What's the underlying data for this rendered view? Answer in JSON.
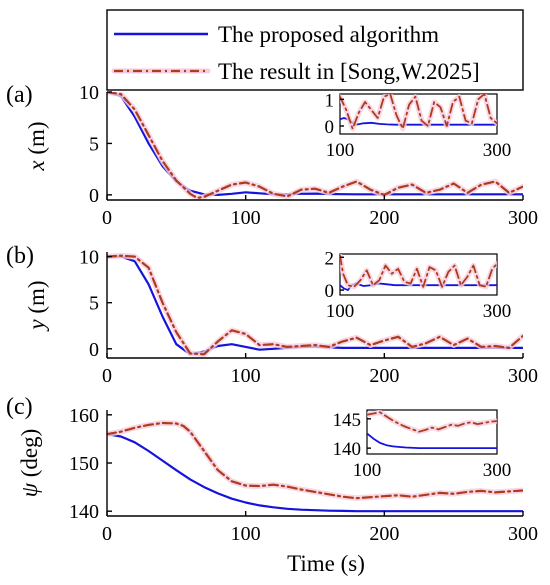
{
  "legend": {
    "items": [
      {
        "label": "The proposed algorithm",
        "color": "#1414dc",
        "style": "solid"
      },
      {
        "label": "The result in [Song,W.2025]",
        "color": "#b03a1a",
        "style": "dash-dot"
      }
    ]
  },
  "xlabel": "Time  (s)",
  "chart_data": [
    {
      "type": "line",
      "panel": "(a)",
      "ylabel": "x (m)",
      "xlim": [
        0,
        300
      ],
      "ylim": [
        -0.5,
        10
      ],
      "xticks": [
        0,
        100,
        200,
        300
      ],
      "yticks": [
        0,
        5,
        10
      ],
      "series": [
        {
          "name": "The proposed algorithm",
          "color": "#1414dc",
          "x": [
            0,
            10,
            20,
            30,
            40,
            50,
            60,
            70,
            80,
            90,
            100,
            110,
            120,
            130,
            140,
            150,
            160,
            170,
            180,
            190,
            200,
            210,
            220,
            230,
            240,
            250,
            260,
            270,
            280,
            290,
            300
          ],
          "y": [
            10,
            9.6,
            7.6,
            5,
            2.8,
            1.3,
            0.4,
            0.05,
            0,
            0.1,
            0.25,
            0.15,
            0.05,
            0.05,
            0.1,
            0.12,
            0.08,
            0.06,
            0.05,
            0.05,
            0.05,
            0.05,
            0.05,
            0.05,
            0.05,
            0.05,
            0.05,
            0.05,
            0.05,
            0.05,
            0.05
          ]
        },
        {
          "name": "The result in [Song,W.2025]",
          "color": "#b03a1a",
          "x": [
            0,
            10,
            20,
            30,
            40,
            50,
            60,
            65,
            70,
            80,
            90,
            100,
            110,
            120,
            130,
            140,
            150,
            160,
            170,
            180,
            190,
            200,
            210,
            220,
            230,
            240,
            250,
            260,
            270,
            280,
            290,
            300
          ],
          "y": [
            10,
            9.8,
            8.3,
            5.8,
            3.3,
            1.4,
            0.1,
            -0.3,
            -0.2,
            0.4,
            1,
            1.2,
            0.8,
            0.1,
            -0.15,
            0.5,
            0.6,
            0.2,
            0.8,
            1.3,
            0.5,
            0,
            0.7,
            1,
            0.2,
            0.5,
            1.1,
            0.2,
            1,
            1.3,
            0.2,
            0.8
          ]
        }
      ],
      "inset": {
        "xlim": [
          100,
          300
        ],
        "ylim": [
          -0.3,
          1.2
        ],
        "xticks": [
          100,
          300
        ],
        "yticks": [
          0,
          1
        ],
        "series": [
          {
            "name": "The proposed algorithm",
            "color": "#1414dc",
            "x": [
              100,
              105,
              110,
              115,
              120,
              130,
              140,
              150,
              160,
              170,
              180,
              200,
              220,
              240,
              260,
              280,
              300
            ],
            "y": [
              0.25,
              0.3,
              0.25,
              0.15,
              0.05,
              0.1,
              0.12,
              0.08,
              0.06,
              0.05,
              0.05,
              0.05,
              0.05,
              0.05,
              0.05,
              0.05,
              0.05
            ]
          },
          {
            "name": "The result in [Song,W.2025]",
            "color": "#b03a1a",
            "x": [
              100,
              108,
              116,
              124,
              132,
              140,
              148,
              156,
              164,
              172,
              180,
              188,
              196,
              204,
              212,
              220,
              228,
              236,
              244,
              252,
              260,
              268,
              276,
              284,
              292,
              300
            ],
            "y": [
              1.1,
              0.6,
              -0.1,
              0.5,
              0.9,
              0.6,
              0.3,
              1.1,
              1.2,
              0.4,
              -0.1,
              0.8,
              1.1,
              0.2,
              0.0,
              0.9,
              0.7,
              0.0,
              0.9,
              1.1,
              0.2,
              0.1,
              1.0,
              1.2,
              0.3,
              0.1
            ]
          }
        ]
      }
    },
    {
      "type": "line",
      "panel": "(b)",
      "ylabel": "y (m)",
      "xlim": [
        0,
        300
      ],
      "ylim": [
        -1,
        10.5
      ],
      "xticks": [
        0,
        100,
        200,
        300
      ],
      "yticks": [
        0,
        5,
        10
      ],
      "series": [
        {
          "name": "The proposed algorithm",
          "color": "#1414dc",
          "x": [
            0,
            10,
            20,
            30,
            40,
            50,
            60,
            70,
            80,
            90,
            100,
            110,
            120,
            130,
            140,
            150,
            160,
            170,
            180,
            200,
            220,
            240,
            260,
            280,
            300
          ],
          "y": [
            10,
            10,
            9.5,
            7,
            3.5,
            0.5,
            -0.6,
            -0.3,
            0.3,
            0.5,
            0.2,
            -0.1,
            0,
            0.1,
            0.2,
            0.2,
            0.15,
            0.1,
            0.1,
            0.1,
            0.1,
            0.1,
            0.1,
            0.1,
            0.1
          ]
        },
        {
          "name": "The result in [Song,W.2025]",
          "color": "#b03a1a",
          "x": [
            0,
            10,
            20,
            30,
            40,
            50,
            60,
            70,
            80,
            90,
            100,
            110,
            120,
            130,
            140,
            150,
            160,
            170,
            180,
            190,
            200,
            210,
            220,
            230,
            240,
            250,
            260,
            270,
            280,
            290,
            300
          ],
          "y": [
            10,
            10.1,
            10,
            8.8,
            5,
            1.8,
            -0.5,
            -0.6,
            0.8,
            2,
            1.6,
            0.4,
            0.5,
            0.2,
            0.3,
            0.4,
            0.2,
            0.8,
            1.2,
            0.4,
            0.9,
            1.3,
            0.2,
            0.6,
            1.3,
            0.4,
            1.1,
            0.2,
            0.3,
            0.1,
            1.4
          ]
        }
      ],
      "inset": {
        "xlim": [
          100,
          300
        ],
        "ylim": [
          -0.3,
          2.2
        ],
        "xticks": [
          100,
          300
        ],
        "yticks": [
          0,
          2
        ],
        "series": [
          {
            "name": "The proposed algorithm",
            "color": "#1414dc",
            "x": [
              100,
              105,
              110,
              115,
              120,
              130,
              140,
              150,
              160,
              170,
              180,
              200,
              220,
              240,
              260,
              280,
              300
            ],
            "y": [
              0.3,
              0.1,
              0,
              0.3,
              0.4,
              0.25,
              0.3,
              0.4,
              0.35,
              0.3,
              0.3,
              0.3,
              0.3,
              0.3,
              0.3,
              0.3,
              0.3
            ]
          },
          {
            "name": "The result in [Song,W.2025]",
            "color": "#b03a1a",
            "x": [
              100,
              104,
              110,
              118,
              126,
              134,
              142,
              150,
              158,
              166,
              174,
              182,
              190,
              198,
              206,
              214,
              222,
              230,
              238,
              246,
              254,
              262,
              270,
              278,
              286,
              294,
              300
            ],
            "y": [
              2.1,
              1.0,
              0.3,
              0.2,
              0.6,
              1.2,
              0.3,
              0.6,
              1.5,
              1.0,
              1.3,
              0.5,
              0.4,
              1.3,
              0.2,
              1.4,
              1.2,
              0.2,
              1.1,
              1.5,
              0.3,
              0.8,
              1.5,
              0.3,
              0.2,
              1.3,
              1.6
            ]
          }
        ]
      }
    },
    {
      "type": "line",
      "panel": "(c)",
      "ylabel": "ψ (deg)",
      "xlim": [
        0,
        300
      ],
      "ylim": [
        139,
        161
      ],
      "xticks": [
        0,
        100,
        200,
        300
      ],
      "yticks": [
        140,
        150,
        160
      ],
      "series": [
        {
          "name": "The proposed algorithm",
          "color": "#1414dc",
          "x": [
            0,
            10,
            20,
            30,
            40,
            50,
            60,
            70,
            80,
            90,
            100,
            110,
            120,
            130,
            140,
            150,
            160,
            170,
            180,
            200,
            220,
            240,
            260,
            280,
            300
          ],
          "y": [
            156,
            155.5,
            154.3,
            152.5,
            150.5,
            148.5,
            146.6,
            145,
            143.7,
            142.6,
            141.8,
            141.2,
            140.8,
            140.5,
            140.3,
            140.2,
            140.1,
            140.05,
            140,
            140,
            140,
            140,
            140,
            140,
            140
          ]
        },
        {
          "name": "The result in [Song,W.2025]",
          "color": "#b03a1a",
          "x": [
            0,
            10,
            20,
            30,
            40,
            50,
            55,
            60,
            70,
            80,
            90,
            100,
            110,
            120,
            130,
            140,
            150,
            160,
            170,
            180,
            190,
            200,
            210,
            220,
            230,
            240,
            250,
            260,
            270,
            280,
            290,
            300
          ],
          "y": [
            156,
            156.5,
            157.3,
            157.9,
            158.3,
            158.2,
            157.7,
            156.5,
            152.5,
            148.5,
            146.2,
            145.3,
            145.2,
            145.5,
            145.1,
            144.5,
            144,
            143.5,
            143,
            142.7,
            142.9,
            143.1,
            143.3,
            143,
            143.4,
            143.8,
            143.6,
            144,
            144.2,
            143.9,
            144.1,
            144.3
          ]
        }
      ],
      "inset": {
        "xlim": [
          100,
          300
        ],
        "ylim": [
          139,
          146.5
        ],
        "xticks": [
          100,
          300
        ],
        "yticks": [
          140,
          145
        ],
        "series": [
          {
            "name": "The proposed algorithm",
            "color": "#1414dc",
            "x": [
              100,
              110,
              120,
              130,
              140,
              150,
              160,
              180,
              200,
              220,
              240,
              260,
              280,
              300
            ],
            "y": [
              142.5,
              141.6,
              140.9,
              140.5,
              140.3,
              140.2,
              140.1,
              140,
              140,
              140,
              140,
              140,
              140,
              140
            ]
          },
          {
            "name": "The result in [Song,W.2025]",
            "color": "#b03a1a",
            "x": [
              100,
              110,
              120,
              130,
              140,
              150,
              160,
              170,
              180,
              190,
              200,
              210,
              220,
              230,
              240,
              250,
              260,
              270,
              280,
              290,
              300
            ],
            "y": [
              145.7,
              145.9,
              146.1,
              145.4,
              144.7,
              144.1,
              143.6,
              143.2,
              142.8,
              143.1,
              143.5,
              143.2,
              143.6,
              144,
              143.8,
              144.2,
              144.4,
              144.1,
              144.3,
              144.5,
              144.6
            ]
          }
        ]
      }
    }
  ]
}
